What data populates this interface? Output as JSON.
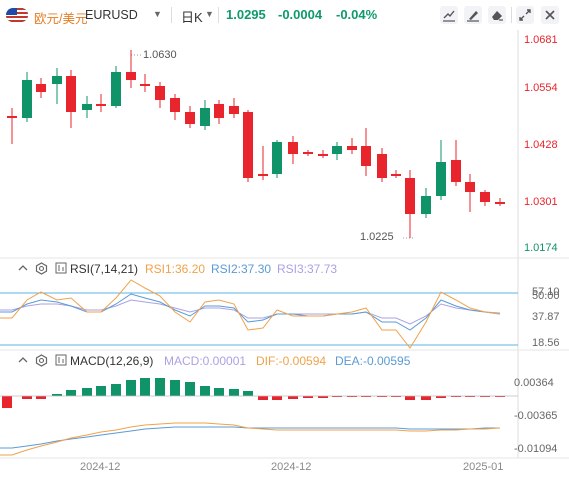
{
  "header": {
    "pair_cn": "欧元/美元",
    "pair": "EURUSD",
    "timeframe": "日K",
    "last": "1.0295",
    "change": "-0.0004",
    "change_pct": "-0.04%"
  },
  "main_axis": {
    "ticks": [
      "1.0681",
      "1.0554",
      "1.0428",
      "1.0301",
      "1.0174"
    ],
    "high_label": "1.0630",
    "low_label": "1.0225"
  },
  "rsi": {
    "title": "RSI(7,14,21)",
    "rsi1": "RSI1:36.20",
    "rsi2": "RSI2:37.30",
    "rsi3": "RSI3:37.73",
    "ticks": [
      "57.10",
      "50.00",
      "37.87",
      "18.56"
    ]
  },
  "macd": {
    "title": "MACD(12,26,9)",
    "macd": "MACD:0.00001",
    "dif": "DIF:-0.00594",
    "dea": "DEA:-0.00595",
    "ticks": [
      "0.00364",
      "-0.00365",
      "-0.01094"
    ]
  },
  "dates": [
    "2024-12",
    "2024-12",
    "2025-01"
  ],
  "colors": {
    "up": "#11936a",
    "down": "#e8252c",
    "rsi1": "#f0a24a",
    "rsi2": "#5b9bd5",
    "rsi3": "#a9a2e6",
    "macd_pos": "#11936a",
    "macd_neg": "#e8252c"
  }
}
